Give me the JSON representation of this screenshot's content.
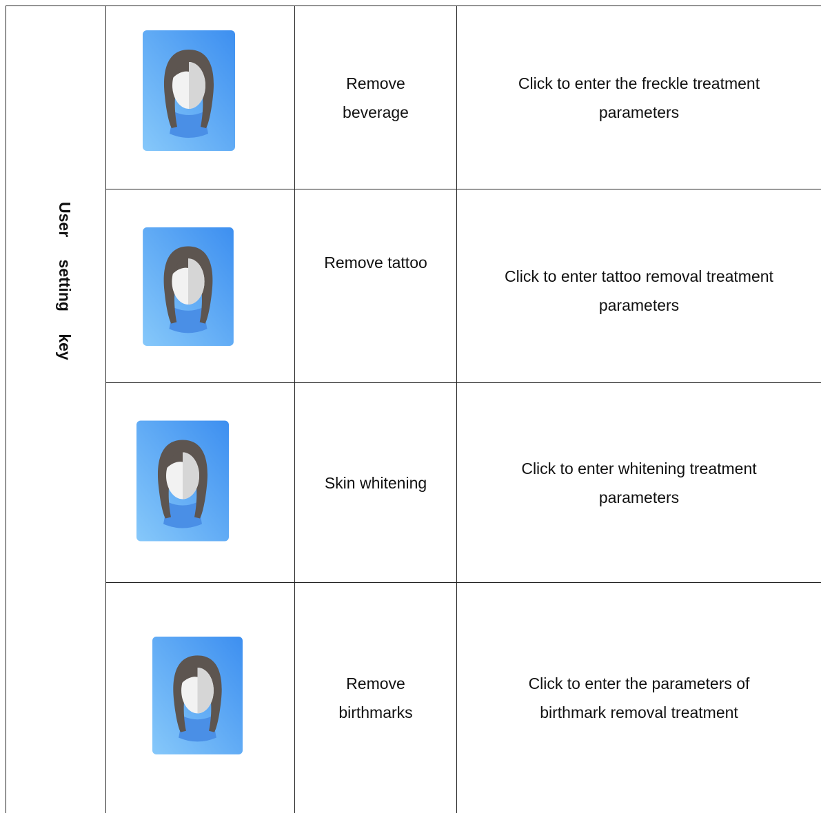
{
  "header": "User setting key",
  "rows": [
    {
      "label": "Remove beverage",
      "description": "Click to enter the freckle treatment parameters"
    },
    {
      "label": "Remove tattoo",
      "description": "Click to enter tattoo removal treatment parameters"
    },
    {
      "label": "Skin whitening",
      "description": "Click to enter whitening treatment parameters"
    },
    {
      "label": "Remove birthmarks",
      "description": "Click to enter the parameters of birthmark removal treatment"
    }
  ]
}
